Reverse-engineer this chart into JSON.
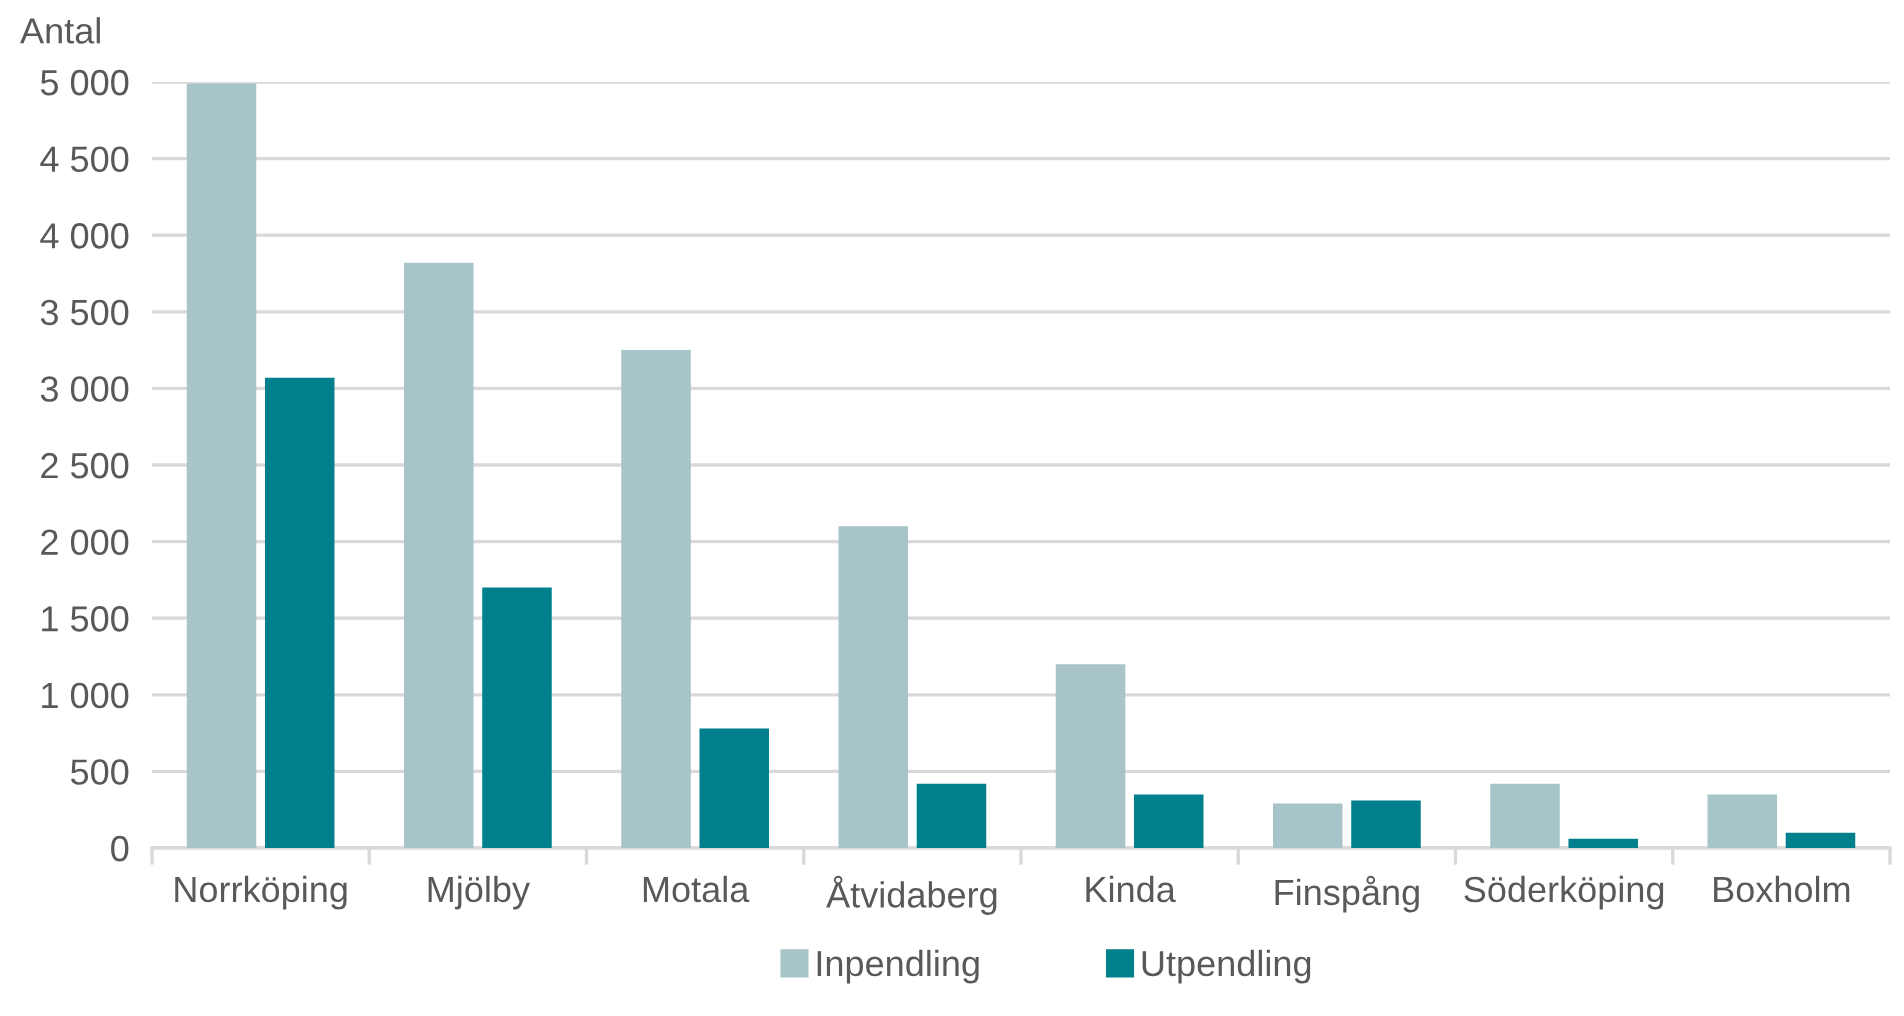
{
  "chart_data": {
    "type": "bar",
    "ylabel": "Antal",
    "categories": [
      "Norrköping",
      "Mjölby",
      "Motala",
      "Åtvidaberg",
      "Kinda",
      "Finspång",
      "Söderköping",
      "Boxholm"
    ],
    "series": [
      {
        "name": "Inpendling",
        "color": "#a7c4c9",
        "values": [
          4990,
          3820,
          3250,
          2100,
          1200,
          290,
          420,
          350
        ]
      },
      {
        "name": "Utpendling",
        "color": "#00808c",
        "values": [
          3070,
          1700,
          780,
          420,
          350,
          310,
          60,
          100
        ]
      }
    ],
    "ylim": [
      0,
      5000
    ],
    "yticks": [
      {
        "value": 0,
        "label": "0"
      },
      {
        "value": 500,
        "label": "500"
      },
      {
        "value": 1000,
        "label": "1 000"
      },
      {
        "value": 1500,
        "label": "1 500"
      },
      {
        "value": 2000,
        "label": "2 000"
      },
      {
        "value": 2500,
        "label": "2 500"
      },
      {
        "value": 3000,
        "label": "3 000"
      },
      {
        "value": 3500,
        "label": "3 500"
      },
      {
        "value": 4000,
        "label": "4 000"
      },
      {
        "value": 4500,
        "label": "4 500"
      },
      {
        "value": 5000,
        "label": "5 000"
      }
    ],
    "grid": "y",
    "legend": "bottom"
  }
}
